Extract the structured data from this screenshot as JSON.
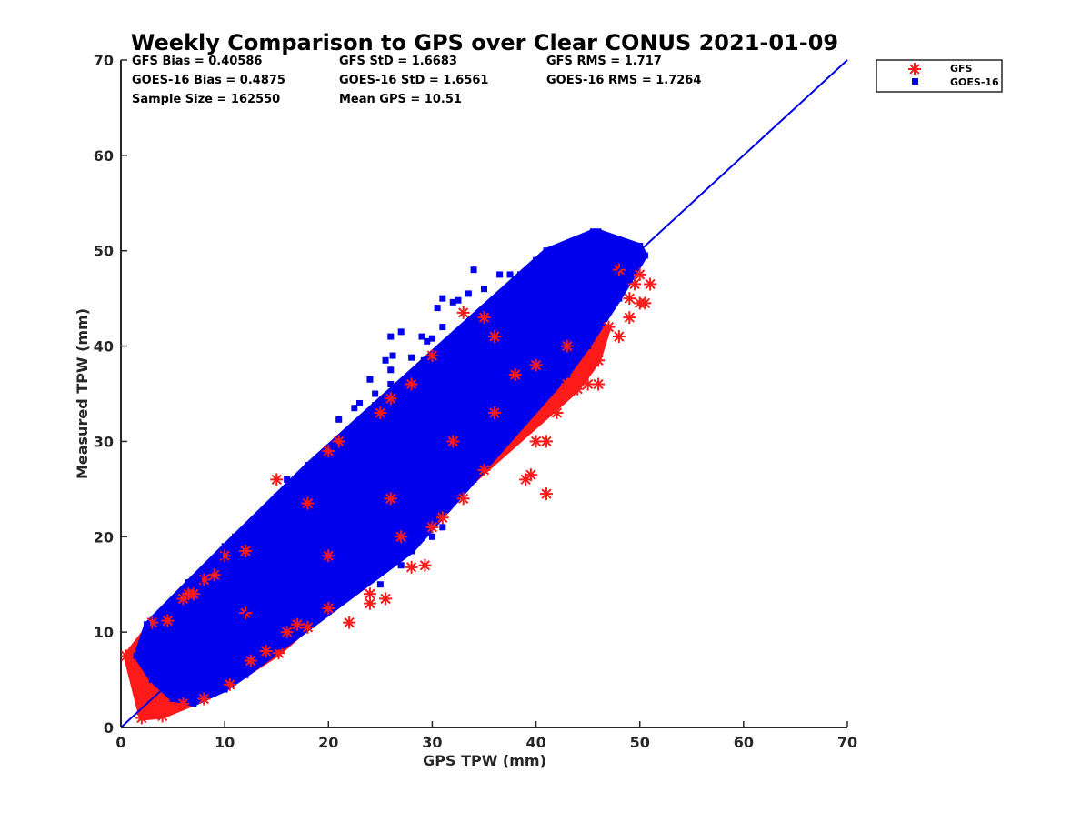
{
  "chart_data": {
    "type": "scatter",
    "title": "Weekly Comparison to GPS over Clear CONUS 2021-01-09",
    "xlabel": "GPS TPW (mm)",
    "ylabel": "Measured TPW (mm)",
    "xlim": [
      0,
      70
    ],
    "ylim": [
      0,
      70
    ],
    "xticks": [
      "0",
      "10",
      "20",
      "30",
      "40",
      "50",
      "60",
      "70"
    ],
    "yticks": [
      "0",
      "10",
      "20",
      "30",
      "40",
      "50",
      "60",
      "70"
    ],
    "grid": false,
    "legend_position": "top-right outside",
    "stats": [
      [
        "GFS Bias = 0.40586",
        "GFS StD = 1.6683",
        "GFS RMS = 1.717"
      ],
      [
        "GOES-16 Bias = 0.4875",
        "GOES-16 StD = 1.6561",
        "GOES-16 RMS = 1.7264"
      ],
      [
        "Sample Size = 162550",
        "Mean GPS = 10.51",
        ""
      ]
    ],
    "reference_line": {
      "name": "1:1 line",
      "from": [
        0,
        0
      ],
      "to": [
        70,
        70
      ],
      "color": "#0000e6"
    },
    "series": [
      {
        "name": "GFS",
        "marker": "asterisk",
        "color": "#ff1a1a",
        "points": [
          [
            0.5,
            7.5
          ],
          [
            1,
            7.6
          ],
          [
            2,
            1
          ],
          [
            15,
            26
          ],
          [
            15.2,
            7.8
          ],
          [
            12.5,
            7
          ],
          [
            10.5,
            4.5
          ],
          [
            8,
            3
          ],
          [
            6,
            2.5
          ],
          [
            4,
            1.2
          ],
          [
            3,
            11
          ],
          [
            4.5,
            11.2
          ],
          [
            6,
            13.5
          ],
          [
            8,
            15.5
          ],
          [
            10,
            18
          ],
          [
            12,
            18.5
          ],
          [
            18,
            23.5
          ],
          [
            20,
            29
          ],
          [
            21,
            30
          ],
          [
            25,
            33
          ],
          [
            26,
            34.5
          ],
          [
            28,
            36
          ],
          [
            30,
            39
          ],
          [
            33,
            43.5
          ],
          [
            35,
            43
          ],
          [
            36,
            41
          ],
          [
            38,
            37
          ],
          [
            39.5,
            26.5
          ],
          [
            39,
            26
          ],
          [
            41,
            24.5
          ],
          [
            40,
            30
          ],
          [
            41,
            30
          ],
          [
            42,
            33
          ],
          [
            43,
            36
          ],
          [
            44,
            35.5
          ],
          [
            45,
            36
          ],
          [
            46,
            36
          ],
          [
            45,
            38
          ],
          [
            46,
            38.5
          ],
          [
            48,
            41
          ],
          [
            47,
            42
          ],
          [
            49,
            43
          ],
          [
            49,
            45
          ],
          [
            50,
            44.5
          ],
          [
            50.5,
            44.5
          ],
          [
            50,
            47.5
          ],
          [
            51,
            46.5
          ],
          [
            49.5,
            46.5
          ],
          [
            48,
            48
          ],
          [
            30,
            21
          ],
          [
            31,
            22
          ],
          [
            33,
            24
          ],
          [
            35,
            27
          ],
          [
            28,
            16.8
          ],
          [
            29.3,
            17
          ],
          [
            27,
            20
          ],
          [
            24,
            14
          ],
          [
            24,
            13
          ],
          [
            25.5,
            13.5
          ],
          [
            22,
            11
          ],
          [
            20,
            12.5
          ],
          [
            18,
            10.5
          ],
          [
            17,
            10.8
          ],
          [
            16,
            10
          ],
          [
            14,
            8
          ],
          [
            7,
            14
          ],
          [
            6.5,
            14
          ],
          [
            9,
            16
          ],
          [
            12,
            12
          ],
          [
            20,
            18
          ],
          [
            26,
            24
          ],
          [
            32,
            30
          ],
          [
            36,
            33
          ],
          [
            40,
            38
          ],
          [
            43,
            40
          ]
        ]
      },
      {
        "name": "GOES-16",
        "marker": "square",
        "color": "#0000ee",
        "points": [
          [
            45.5,
            52
          ],
          [
            46,
            52
          ],
          [
            44.5,
            51
          ],
          [
            44,
            50
          ],
          [
            41,
            50
          ],
          [
            42.5,
            50.5
          ],
          [
            47.5,
            50.5
          ],
          [
            48.5,
            50
          ],
          [
            50,
            50.5
          ],
          [
            50.5,
            49.5
          ],
          [
            43,
            49
          ],
          [
            44.5,
            48.5
          ],
          [
            40,
            49
          ],
          [
            34,
            48
          ],
          [
            36.5,
            47.5
          ],
          [
            37.5,
            47.5
          ],
          [
            38.5,
            47.5
          ],
          [
            39,
            46.5
          ],
          [
            40.5,
            47
          ],
          [
            33.5,
            45.5
          ],
          [
            35,
            46
          ],
          [
            31,
            45
          ],
          [
            32.5,
            44.8
          ],
          [
            32,
            44.6
          ],
          [
            30.5,
            44
          ],
          [
            31,
            42
          ],
          [
            29,
            41
          ],
          [
            30,
            40.8
          ],
          [
            29.5,
            40.5
          ],
          [
            27,
            41.5
          ],
          [
            26,
            41
          ],
          [
            26.2,
            39
          ],
          [
            25.5,
            38.5
          ],
          [
            28,
            38.8
          ],
          [
            29.2,
            38.5
          ],
          [
            26,
            37.5
          ],
          [
            24,
            36.5
          ],
          [
            26,
            36
          ],
          [
            24.5,
            35
          ],
          [
            23,
            34
          ],
          [
            24.5,
            33.8
          ],
          [
            22.5,
            33.5
          ],
          [
            23.5,
            32.5
          ],
          [
            21,
            32.3
          ],
          [
            20.5,
            29.5
          ],
          [
            21.5,
            28.5
          ],
          [
            19,
            28
          ],
          [
            18,
            27.5
          ],
          [
            17.5,
            26.5
          ],
          [
            16,
            26
          ],
          [
            16.5,
            24.5
          ],
          [
            15,
            24.2
          ],
          [
            14,
            23
          ],
          [
            13,
            21
          ],
          [
            12.5,
            20.5
          ],
          [
            11,
            20
          ],
          [
            10,
            19
          ],
          [
            9.5,
            18
          ],
          [
            8.5,
            16.5
          ],
          [
            7.5,
            15.5
          ],
          [
            6.5,
            15.2
          ],
          [
            3.5,
            10
          ],
          [
            2.5,
            10.8
          ],
          [
            1.5,
            7.5
          ],
          [
            3,
            5
          ],
          [
            5,
            3
          ],
          [
            7,
            2.5
          ],
          [
            10,
            4
          ],
          [
            12,
            5.5
          ],
          [
            15,
            8.5
          ],
          [
            17,
            12
          ],
          [
            21,
            14
          ],
          [
            25,
            15
          ],
          [
            27,
            17
          ],
          [
            28,
            18.5
          ],
          [
            30,
            20
          ],
          [
            31,
            21
          ],
          [
            33,
            25
          ],
          [
            34,
            26
          ],
          [
            36,
            29
          ],
          [
            38,
            32
          ],
          [
            40,
            34
          ],
          [
            41,
            35
          ],
          [
            42,
            36
          ],
          [
            43,
            37
          ],
          [
            44,
            39
          ],
          [
            45,
            40
          ],
          [
            46,
            42
          ],
          [
            47,
            44
          ],
          [
            48,
            45
          ],
          [
            49,
            47
          ],
          [
            45,
            45
          ],
          [
            39,
            40
          ],
          [
            35,
            37
          ],
          [
            30,
            32
          ],
          [
            25,
            27
          ],
          [
            20,
            22
          ],
          [
            15,
            16
          ],
          [
            10,
            11
          ],
          [
            5,
            6
          ]
        ]
      }
    ]
  }
}
